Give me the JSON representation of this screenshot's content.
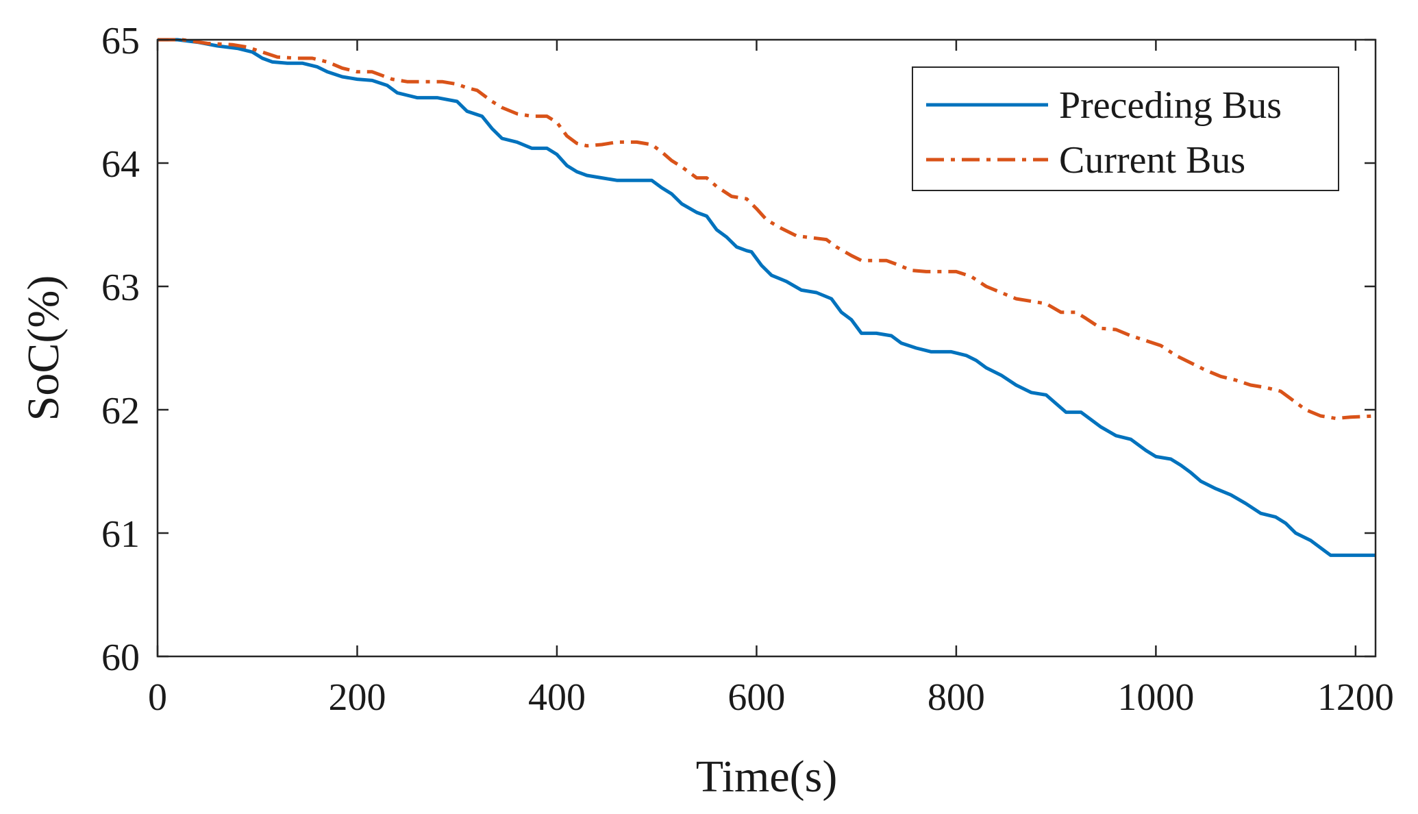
{
  "chart_data": {
    "type": "line",
    "title": "",
    "xlabel": "Time(s)",
    "ylabel": "SoC(%)",
    "xlim": [
      0,
      1220
    ],
    "ylim": [
      60,
      65
    ],
    "xticks": [
      0,
      200,
      400,
      600,
      800,
      1000,
      1200
    ],
    "yticks": [
      60,
      61,
      62,
      63,
      64,
      65
    ],
    "xtick_labels": [
      "0",
      "200",
      "400",
      "600",
      "800",
      "1000",
      "1200"
    ],
    "ytick_labels": [
      "60",
      "61",
      "62",
      "63",
      "64",
      "65"
    ],
    "grid": false,
    "legend_position": "top-right",
    "series": [
      {
        "name": "Preceding Bus",
        "color": "#0072BD",
        "style": "solid",
        "points": [
          [
            0,
            65.0
          ],
          [
            20,
            65.0
          ],
          [
            40,
            64.98
          ],
          [
            60,
            64.95
          ],
          [
            80,
            64.93
          ],
          [
            95,
            64.9
          ],
          [
            105,
            64.85
          ],
          [
            115,
            64.82
          ],
          [
            130,
            64.81
          ],
          [
            145,
            64.81
          ],
          [
            160,
            64.78
          ],
          [
            170,
            64.74
          ],
          [
            185,
            64.7
          ],
          [
            200,
            64.68
          ],
          [
            215,
            64.67
          ],
          [
            230,
            64.63
          ],
          [
            240,
            64.57
          ],
          [
            250,
            64.55
          ],
          [
            260,
            64.53
          ],
          [
            280,
            64.53
          ],
          [
            300,
            64.5
          ],
          [
            310,
            64.42
          ],
          [
            325,
            64.38
          ],
          [
            335,
            64.28
          ],
          [
            345,
            64.2
          ],
          [
            360,
            64.17
          ],
          [
            375,
            64.12
          ],
          [
            390,
            64.12
          ],
          [
            400,
            64.07
          ],
          [
            410,
            63.98
          ],
          [
            420,
            63.93
          ],
          [
            430,
            63.9
          ],
          [
            445,
            63.88
          ],
          [
            460,
            63.86
          ],
          [
            480,
            63.86
          ],
          [
            495,
            63.86
          ],
          [
            505,
            63.8
          ],
          [
            515,
            63.75
          ],
          [
            525,
            63.67
          ],
          [
            540,
            63.6
          ],
          [
            550,
            63.57
          ],
          [
            560,
            63.46
          ],
          [
            570,
            63.4
          ],
          [
            580,
            63.32
          ],
          [
            590,
            63.29
          ],
          [
            595,
            63.28
          ],
          [
            605,
            63.17
          ],
          [
            615,
            63.09
          ],
          [
            630,
            63.04
          ],
          [
            645,
            62.97
          ],
          [
            660,
            62.95
          ],
          [
            675,
            62.9
          ],
          [
            685,
            62.79
          ],
          [
            695,
            62.73
          ],
          [
            705,
            62.62
          ],
          [
            720,
            62.62
          ],
          [
            735,
            62.6
          ],
          [
            745,
            62.54
          ],
          [
            760,
            62.5
          ],
          [
            775,
            62.47
          ],
          [
            795,
            62.47
          ],
          [
            810,
            62.44
          ],
          [
            820,
            62.4
          ],
          [
            830,
            62.34
          ],
          [
            845,
            62.28
          ],
          [
            860,
            62.2
          ],
          [
            875,
            62.14
          ],
          [
            890,
            62.12
          ],
          [
            900,
            62.05
          ],
          [
            910,
            61.98
          ],
          [
            925,
            61.98
          ],
          [
            935,
            61.92
          ],
          [
            945,
            61.86
          ],
          [
            960,
            61.79
          ],
          [
            975,
            61.76
          ],
          [
            990,
            61.67
          ],
          [
            1000,
            61.62
          ],
          [
            1015,
            61.6
          ],
          [
            1025,
            61.55
          ],
          [
            1035,
            61.49
          ],
          [
            1045,
            61.42
          ],
          [
            1060,
            61.36
          ],
          [
            1075,
            61.31
          ],
          [
            1090,
            61.24
          ],
          [
            1105,
            61.16
          ],
          [
            1120,
            61.13
          ],
          [
            1130,
            61.08
          ],
          [
            1140,
            61.0
          ],
          [
            1155,
            60.94
          ],
          [
            1170,
            60.85
          ],
          [
            1175,
            60.82
          ],
          [
            1220,
            60.82
          ]
        ]
      },
      {
        "name": "Current Bus",
        "color": "#D95319",
        "style": "dashdot",
        "points": [
          [
            0,
            65.0
          ],
          [
            25,
            65.0
          ],
          [
            50,
            64.97
          ],
          [
            75,
            64.96
          ],
          [
            90,
            64.94
          ],
          [
            105,
            64.9
          ],
          [
            120,
            64.86
          ],
          [
            140,
            64.85
          ],
          [
            155,
            64.85
          ],
          [
            170,
            64.82
          ],
          [
            185,
            64.77
          ],
          [
            200,
            64.74
          ],
          [
            215,
            64.74
          ],
          [
            225,
            64.71
          ],
          [
            235,
            64.68
          ],
          [
            250,
            64.66
          ],
          [
            265,
            64.66
          ],
          [
            285,
            64.66
          ],
          [
            300,
            64.64
          ],
          [
            310,
            64.61
          ],
          [
            320,
            64.59
          ],
          [
            335,
            64.5
          ],
          [
            345,
            64.45
          ],
          [
            360,
            64.4
          ],
          [
            375,
            64.38
          ],
          [
            390,
            64.38
          ],
          [
            400,
            64.33
          ],
          [
            410,
            64.22
          ],
          [
            420,
            64.16
          ],
          [
            430,
            64.14
          ],
          [
            445,
            64.15
          ],
          [
            460,
            64.17
          ],
          [
            480,
            64.17
          ],
          [
            495,
            64.15
          ],
          [
            505,
            64.09
          ],
          [
            515,
            64.02
          ],
          [
            525,
            63.97
          ],
          [
            540,
            63.88
          ],
          [
            550,
            63.88
          ],
          [
            560,
            63.81
          ],
          [
            575,
            63.73
          ],
          [
            590,
            63.71
          ],
          [
            600,
            63.63
          ],
          [
            610,
            63.54
          ],
          [
            625,
            63.47
          ],
          [
            640,
            63.41
          ],
          [
            660,
            63.39
          ],
          [
            670,
            63.38
          ],
          [
            680,
            63.32
          ],
          [
            695,
            63.25
          ],
          [
            705,
            63.21
          ],
          [
            730,
            63.21
          ],
          [
            740,
            63.18
          ],
          [
            755,
            63.13
          ],
          [
            770,
            63.12
          ],
          [
            800,
            63.12
          ],
          [
            815,
            63.08
          ],
          [
            830,
            63.0
          ],
          [
            845,
            62.95
          ],
          [
            860,
            62.9
          ],
          [
            875,
            62.88
          ],
          [
            890,
            62.86
          ],
          [
            905,
            62.79
          ],
          [
            920,
            62.79
          ],
          [
            930,
            62.74
          ],
          [
            945,
            62.66
          ],
          [
            960,
            62.65
          ],
          [
            975,
            62.6
          ],
          [
            990,
            62.56
          ],
          [
            1005,
            62.52
          ],
          [
            1020,
            62.44
          ],
          [
            1035,
            62.38
          ],
          [
            1050,
            62.32
          ],
          [
            1065,
            62.27
          ],
          [
            1080,
            62.24
          ],
          [
            1095,
            62.2
          ],
          [
            1110,
            62.18
          ],
          [
            1125,
            62.15
          ],
          [
            1135,
            62.09
          ],
          [
            1150,
            62.0
          ],
          [
            1165,
            61.95
          ],
          [
            1180,
            61.93
          ],
          [
            1195,
            61.94
          ],
          [
            1220,
            61.95
          ]
        ]
      }
    ]
  }
}
